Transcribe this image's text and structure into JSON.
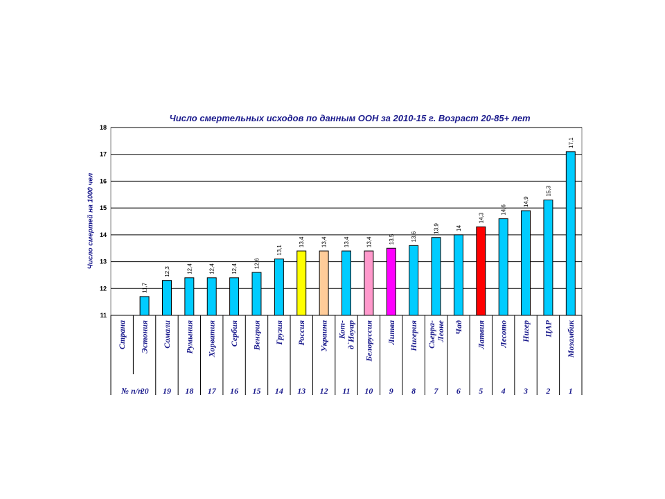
{
  "chart_data": {
    "type": "bar",
    "title": "Число смертельных исходов по данным ООН за 2010-15 г. Возраст 20-85+ лет",
    "ylabel": "Число смертей на 1000 чел",
    "ylim": [
      11,
      18
    ],
    "yticks": [
      11,
      12,
      13,
      14,
      15,
      16,
      17,
      18
    ],
    "grid": true,
    "table_header_country": "Страна",
    "table_header_number": "№ п/п",
    "categories": [
      "Эстония",
      "Сомали",
      "Румыния",
      "Хорватия",
      "Сербия",
      "Венгрия",
      "Грузия",
      "Россия",
      "Украина",
      "Кот-д`Ивуар",
      "Белоруссия",
      "Литва",
      "Нигерия",
      "Сьерра-Леоне",
      "Чад",
      "Латвия",
      "Лесото",
      "Нигер",
      "ЦАР",
      "Мозамбик"
    ],
    "category_lines": [
      [
        "Эстония"
      ],
      [
        "Сомали"
      ],
      [
        "Румыния"
      ],
      [
        "Хорватия"
      ],
      [
        "Сербия"
      ],
      [
        "Венгрия"
      ],
      [
        "Грузия"
      ],
      [
        "Россия"
      ],
      [
        "Украина"
      ],
      [
        "Кот-",
        "д`Ивуар"
      ],
      [
        "Белоруссия"
      ],
      [
        "Литва"
      ],
      [
        "Нигерия"
      ],
      [
        "Сьерра-",
        "Леоне"
      ],
      [
        "Чад"
      ],
      [
        "Латвия"
      ],
      [
        "Лесото"
      ],
      [
        "Нигер"
      ],
      [
        "ЦАР"
      ],
      [
        "Мозамбик"
      ]
    ],
    "numbers": [
      "20",
      "19",
      "18",
      "17",
      "16",
      "15",
      "14",
      "13",
      "12",
      "11",
      "10",
      "9",
      "8",
      "7",
      "6",
      "5",
      "4",
      "3",
      "2",
      "1"
    ],
    "values": [
      11.7,
      12.3,
      12.4,
      12.4,
      12.4,
      12.6,
      13.1,
      13.4,
      13.4,
      13.4,
      13.4,
      13.5,
      13.6,
      13.9,
      14,
      14.3,
      14.6,
      14.9,
      15.3,
      17.1
    ],
    "value_labels": [
      "11,7",
      "12,3",
      "12,4",
      "12,4",
      "12,4",
      "12,6",
      "13,1",
      "13,4",
      "13,4",
      "13,4",
      "13,4",
      "13,5",
      "13,6",
      "13,9",
      "14",
      "14,3",
      "14,6",
      "14,9",
      "15,3",
      "17,1"
    ],
    "colors": [
      "#00ccff",
      "#00ccff",
      "#00ccff",
      "#00ccff",
      "#00ccff",
      "#00ccff",
      "#00ccff",
      "#ffff00",
      "#ffcc99",
      "#00ccff",
      "#ff99cc",
      "#ff00ff",
      "#00ccff",
      "#00ccff",
      "#00ccff",
      "#ff0000",
      "#00ccff",
      "#00ccff",
      "#00ccff",
      "#00ccff"
    ]
  }
}
